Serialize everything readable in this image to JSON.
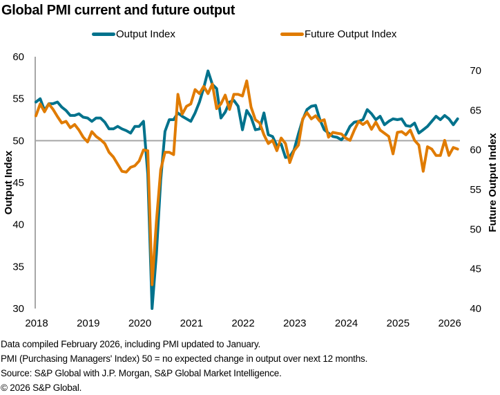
{
  "chart_data": {
    "type": "line",
    "title": "Global PMI current and future output",
    "xlabel": "",
    "ylabel": "Output Index",
    "y2label": "Future Output Index",
    "ylim": [
      30,
      60
    ],
    "y2lim": [
      40,
      70
    ],
    "yticks": [
      "30",
      "35",
      "40",
      "45",
      "50",
      "55",
      "60"
    ],
    "y2ticks": [
      "40",
      "45",
      "50",
      "55",
      "60",
      "65",
      "70"
    ],
    "xticks": [
      "2018",
      "2019",
      "2020",
      "2021",
      "2022",
      "2023",
      "2024",
      "2025",
      "2026"
    ],
    "x_start": "2018-01",
    "x_end": "2026-01",
    "frequency": "monthly",
    "reference_line": {
      "axis": "left",
      "value": 50
    },
    "legend_position": "top-center",
    "series": [
      {
        "name": "Output Index",
        "axis": "left",
        "color": "#00728C",
        "values": [
          54.6,
          55.0,
          53.6,
          54.4,
          54.4,
          54.6,
          54.0,
          53.6,
          53.0,
          53.0,
          53.2,
          52.8,
          52.7,
          52.3,
          52.7,
          52.7,
          52.2,
          51.4,
          51.4,
          51.7,
          51.4,
          51.2,
          50.9,
          51.7,
          51.7,
          52.3,
          46.0,
          30.0,
          36.5,
          45.3,
          51.1,
          52.5,
          52.5,
          53.3,
          52.9,
          52.6,
          52.3,
          53.3,
          54.6,
          56.3,
          58.3,
          56.7,
          56.2,
          52.7,
          53.4,
          54.6,
          54.8,
          54.1,
          51.3,
          53.6,
          52.8,
          51.3,
          51.4,
          53.3,
          50.7,
          50.5,
          49.4,
          49.6,
          48.0,
          48.1,
          48.9,
          50.8,
          52.5,
          53.7,
          54.1,
          54.2,
          52.5,
          51.3,
          50.9,
          50.5,
          50.4,
          50.1,
          50.7,
          51.7,
          52.2,
          52.3,
          52.5,
          53.7,
          53.2,
          52.5,
          52.9,
          51.9,
          52.3,
          52.6,
          52.5,
          52.6,
          51.8,
          51.7,
          52.1,
          50.9,
          51.3,
          51.7,
          52.3,
          52.9,
          52.5,
          53.0,
          52.6,
          51.9,
          52.6
        ]
      },
      {
        "name": "Future Output Index",
        "axis": "right",
        "color": "#E07B00",
        "values": [
          64.3,
          65.8,
          64.8,
          65.8,
          65.1,
          64.2,
          63.4,
          63.6,
          62.8,
          63.2,
          62.5,
          61.6,
          61.0,
          62.3,
          61.7,
          61.3,
          60.8,
          59.7,
          59.1,
          58.2,
          57.3,
          57.2,
          57.8,
          58.0,
          58.6,
          60.0,
          59.9,
          43.0,
          51.0,
          57.5,
          59.7,
          59.7,
          59.4,
          67.0,
          64.5,
          65.5,
          65.8,
          67.6,
          67.1,
          68.0,
          67.1,
          68.3,
          65.2,
          65.8,
          66.9,
          65.1,
          67.0,
          67.0,
          66.8,
          68.7,
          65.4,
          63.8,
          63.4,
          61.9,
          60.8,
          61.2,
          59.9,
          61.5,
          60.8,
          58.4,
          59.9,
          60.6,
          63.9,
          64.7,
          63.9,
          64.3,
          63.6,
          63.8,
          61.6,
          62.2,
          62.1,
          62.0,
          61.5,
          61.2,
          62.5,
          63.6,
          63.2,
          63.6,
          62.6,
          63.5,
          62.5,
          62.1,
          61.7,
          59.5,
          62.2,
          62.3,
          61.9,
          62.5,
          61.2,
          60.6,
          57.3,
          60.4,
          60.1,
          59.3,
          59.3,
          61.2,
          59.3,
          60.3,
          60.1
        ]
      }
    ]
  },
  "footnotes": [
    "Data compiled February 2026, including PMI updated to January.",
    "PMI (Purchasing Managers' Index) 50 = no expected change in output over next 12 months.",
    "Source: S&P Global with J.P. Morgan, S&P Global Market Intelligence.",
    "© 2026 S&P Global."
  ]
}
